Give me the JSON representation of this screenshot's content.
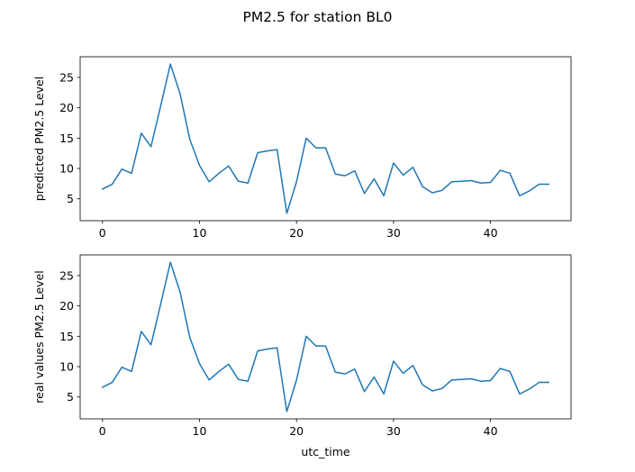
{
  "figure": {
    "title": "PM2.5 for station BL0",
    "background": "#ffffff"
  },
  "chart_data": [
    {
      "type": "line",
      "title": "",
      "xlabel": "",
      "ylabel": "predicted PM2.5 Level",
      "xlim": [
        -2.3,
        48.3
      ],
      "ylim": [
        1.4,
        28.4
      ],
      "xticks": [
        0,
        10,
        20,
        30,
        40
      ],
      "yticks": [
        5,
        10,
        15,
        20,
        25
      ],
      "xtick_labels": [
        "0",
        "10",
        "20",
        "30",
        "40"
      ],
      "ytick_labels": [
        "5",
        "10",
        "15",
        "20",
        "25"
      ],
      "grid": false,
      "line_color": "#1f77b4",
      "series": [
        {
          "x": [
            0,
            1,
            2,
            3,
            4,
            5,
            6,
            7,
            8,
            9,
            10,
            11,
            12,
            13,
            14,
            15,
            16,
            17,
            18,
            19,
            20,
            21,
            22,
            23,
            24,
            25,
            26,
            27,
            28,
            29,
            30,
            31,
            32,
            33,
            34,
            35,
            36,
            37,
            38,
            39,
            40,
            41,
            42,
            43,
            44,
            45,
            46
          ],
          "values": [
            6.6,
            7.4,
            9.9,
            9.2,
            15.8,
            13.6,
            20.3,
            27.2,
            22.3,
            14.8,
            10.5,
            7.8,
            9.2,
            10.4,
            7.9,
            7.6,
            12.6,
            12.9,
            13.1,
            2.6,
            7.8,
            15.0,
            13.4,
            13.4,
            9.1,
            8.8,
            9.6,
            5.9,
            8.3,
            5.5,
            10.9,
            8.9,
            10.2,
            7.0,
            6.0,
            6.4,
            7.8,
            7.9,
            8.0,
            7.6,
            7.7,
            9.7,
            9.2,
            5.5,
            6.3,
            7.4,
            7.4
          ]
        }
      ]
    },
    {
      "type": "line",
      "title": "",
      "xlabel": "utc_time",
      "ylabel": "real values PM2.5 Level",
      "xlim": [
        -2.3,
        48.3
      ],
      "ylim": [
        1.4,
        28.4
      ],
      "xticks": [
        0,
        10,
        20,
        30,
        40
      ],
      "yticks": [
        5,
        10,
        15,
        20,
        25
      ],
      "xtick_labels": [
        "0",
        "10",
        "20",
        "30",
        "40"
      ],
      "ytick_labels": [
        "5",
        "10",
        "15",
        "20",
        "25"
      ],
      "grid": false,
      "line_color": "#1f77b4",
      "series": [
        {
          "x": [
            0,
            1,
            2,
            3,
            4,
            5,
            6,
            7,
            8,
            9,
            10,
            11,
            12,
            13,
            14,
            15,
            16,
            17,
            18,
            19,
            20,
            21,
            22,
            23,
            24,
            25,
            26,
            27,
            28,
            29,
            30,
            31,
            32,
            33,
            34,
            35,
            36,
            37,
            38,
            39,
            40,
            41,
            42,
            43,
            44,
            45,
            46
          ],
          "values": [
            6.6,
            7.4,
            9.9,
            9.2,
            15.8,
            13.6,
            20.3,
            27.2,
            22.3,
            14.8,
            10.5,
            7.8,
            9.2,
            10.4,
            7.9,
            7.6,
            12.6,
            12.9,
            13.1,
            2.6,
            7.8,
            15.0,
            13.4,
            13.4,
            9.1,
            8.8,
            9.6,
            5.9,
            8.3,
            5.5,
            10.9,
            8.9,
            10.2,
            7.0,
            6.0,
            6.4,
            7.8,
            7.9,
            8.0,
            7.6,
            7.7,
            9.7,
            9.2,
            5.5,
            6.3,
            7.4,
            7.4
          ]
        }
      ]
    }
  ]
}
